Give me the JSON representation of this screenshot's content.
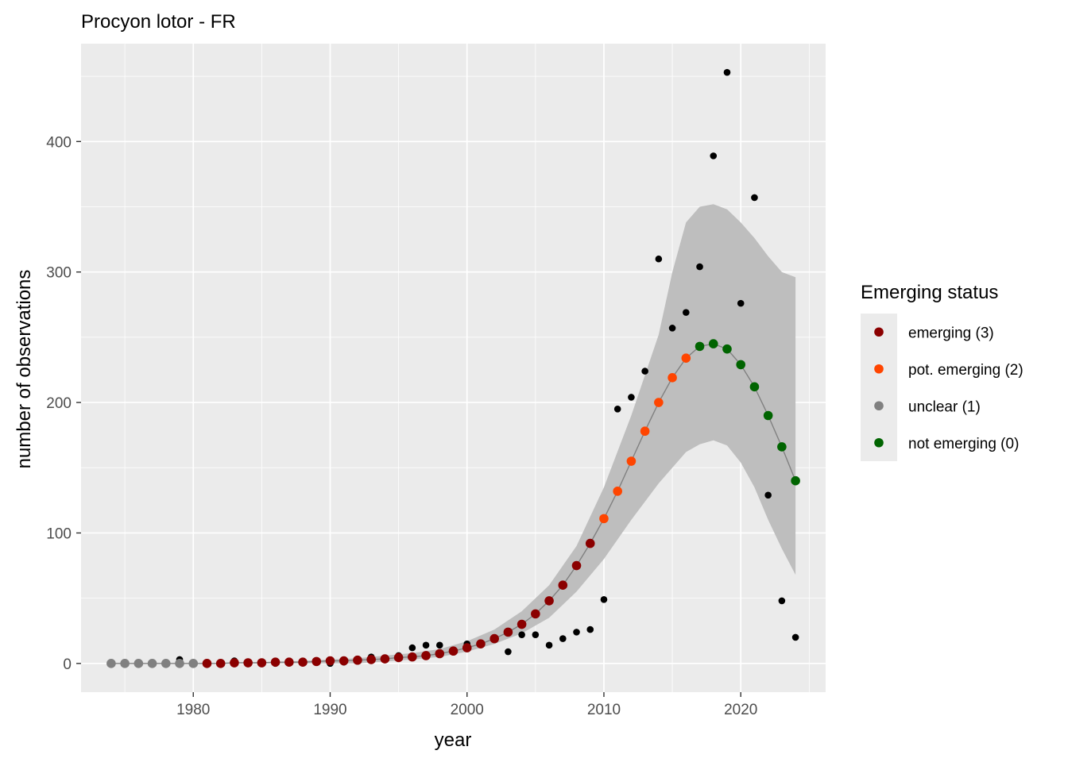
{
  "chart_data": {
    "type": "scatter",
    "title": "Procyon lotor - FR",
    "xlabel": "year",
    "ylabel": "number of observations",
    "xlim": [
      1971.8,
      2026.2
    ],
    "ylim": [
      -22,
      475
    ],
    "x_ticks": [
      1980,
      1990,
      2000,
      2010,
      2020
    ],
    "x_tick_labels": [
      "1980",
      "1990",
      "2000",
      "2010",
      "2020"
    ],
    "y_ticks": [
      0,
      100,
      200,
      300,
      400
    ],
    "y_tick_labels": [
      "0",
      "100",
      "200",
      "300",
      "400"
    ],
    "grid": true,
    "legend": {
      "title": "Emerging status",
      "placement": "right",
      "entries": [
        {
          "label": "emerging (3)",
          "color": "#8b0000"
        },
        {
          "label": "pot. emerging (2)",
          "color": "#ff4500"
        },
        {
          "label": "unclear (1)",
          "color": "#808080"
        },
        {
          "label": "not emerging (0)",
          "color": "#006400"
        }
      ]
    },
    "colors": {
      "panel": "#ebebeb",
      "grid": "#ffffff",
      "ribbon": "#bebebe",
      "fit_line": "#808080",
      "observed": "#000000"
    },
    "observed": {
      "x": [
        1974,
        1975,
        1976,
        1977,
        1978,
        1979,
        1980,
        1981,
        1982,
        1983,
        1984,
        1985,
        1986,
        1987,
        1988,
        1989,
        1990,
        1991,
        1992,
        1993,
        1994,
        1995,
        1996,
        1997,
        1998,
        1999,
        2000,
        2001,
        2002,
        2003,
        2004,
        2005,
        2006,
        2007,
        2008,
        2009,
        2010,
        2011,
        2012,
        2013,
        2014,
        2015,
        2016,
        2017,
        2018,
        2019,
        2020,
        2021,
        2022,
        2023,
        2024
      ],
      "y": [
        0,
        0,
        0,
        0,
        0,
        3,
        0,
        0,
        0,
        2,
        0,
        0,
        0,
        1,
        1,
        1,
        0,
        1,
        2,
        5,
        3,
        6,
        12,
        14,
        14,
        10,
        15,
        15,
        19,
        9,
        22,
        22,
        14,
        19,
        24,
        26,
        49,
        195,
        204,
        224,
        310,
        257,
        269,
        304,
        389,
        453,
        276,
        357,
        129,
        48,
        20
      ]
    },
    "fitted": {
      "x": [
        1974,
        1975,
        1976,
        1977,
        1978,
        1979,
        1980,
        1981,
        1982,
        1983,
        1984,
        1985,
        1986,
        1987,
        1988,
        1989,
        1990,
        1991,
        1992,
        1993,
        1994,
        1995,
        1996,
        1997,
        1998,
        1999,
        2000,
        2001,
        2002,
        2003,
        2004,
        2005,
        2006,
        2007,
        2008,
        2009,
        2010,
        2011,
        2012,
        2013,
        2014,
        2015,
        2016,
        2017,
        2018,
        2019,
        2020,
        2021,
        2022,
        2023,
        2024
      ],
      "y": [
        0,
        0,
        0,
        0,
        0,
        0,
        0,
        0,
        0,
        0.5,
        0.5,
        0.5,
        1,
        1,
        1,
        1.5,
        2,
        2,
        2.5,
        3,
        3.5,
        4.5,
        5,
        6,
        7.5,
        9.5,
        12,
        15,
        19,
        24,
        30,
        38,
        48,
        60,
        75,
        92,
        111,
        132,
        155,
        178,
        200,
        219,
        234,
        243,
        245,
        241,
        229,
        212,
        190,
        166,
        140
      ],
      "status": [
        "unclear (1)",
        "unclear (1)",
        "unclear (1)",
        "unclear (1)",
        "unclear (1)",
        "unclear (1)",
        "unclear (1)",
        "emerging (3)",
        "emerging (3)",
        "emerging (3)",
        "emerging (3)",
        "emerging (3)",
        "emerging (3)",
        "emerging (3)",
        "emerging (3)",
        "emerging (3)",
        "emerging (3)",
        "emerging (3)",
        "emerging (3)",
        "emerging (3)",
        "emerging (3)",
        "emerging (3)",
        "emerging (3)",
        "emerging (3)",
        "emerging (3)",
        "emerging (3)",
        "emerging (3)",
        "emerging (3)",
        "emerging (3)",
        "emerging (3)",
        "emerging (3)",
        "emerging (3)",
        "emerging (3)",
        "emerging (3)",
        "emerging (3)",
        "emerging (3)",
        "pot. emerging (2)",
        "pot. emerging (2)",
        "pot. emerging (2)",
        "pot. emerging (2)",
        "pot. emerging (2)",
        "pot. emerging (2)",
        "pot. emerging (2)",
        "not emerging (0)",
        "not emerging (0)",
        "not emerging (0)",
        "not emerging (0)",
        "not emerging (0)",
        "not emerging (0)",
        "not emerging (0)",
        "not emerging (0)"
      ]
    },
    "confidence_band": {
      "x": [
        1974,
        1976,
        1978,
        1980,
        1982,
        1984,
        1986,
        1988,
        1990,
        1992,
        1994,
        1996,
        1998,
        2000,
        2002,
        2004,
        2006,
        2008,
        2010,
        2012,
        2014,
        2015,
        2016,
        2017,
        2018,
        2019,
        2020,
        2021,
        2022,
        2023,
        2024
      ],
      "lower": [
        0,
        0,
        0,
        0,
        0,
        0,
        0,
        0,
        0,
        0,
        1.5,
        3,
        5,
        9,
        15,
        23,
        35,
        55,
        80,
        110,
        138,
        150,
        162,
        168,
        171,
        167,
        154,
        135,
        110,
        88,
        68
      ],
      "upper": [
        0,
        0,
        0,
        0,
        0,
        0,
        1,
        2,
        3,
        4,
        6,
        8,
        11,
        17,
        26,
        40,
        60,
        90,
        135,
        190,
        252,
        300,
        338,
        350,
        352,
        348,
        338,
        326,
        312,
        300,
        296
      ]
    }
  }
}
